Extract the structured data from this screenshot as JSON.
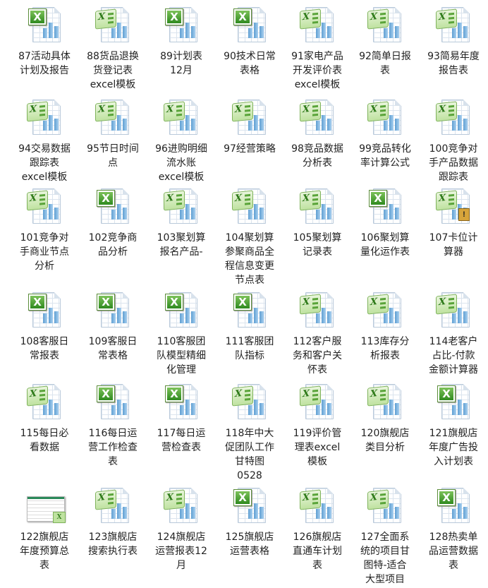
{
  "files": [
    {
      "label": "87活动具体\n计划及报告",
      "icon": "excel-square"
    },
    {
      "label": "88货品退换\n货登记表\nexcel模板",
      "icon": "excel-grid"
    },
    {
      "label": "89计划表\n12月",
      "icon": "excel-square"
    },
    {
      "label": "90技术日常\n表格",
      "icon": "excel-square"
    },
    {
      "label": "91家电产品\n开发评价表\nexcel模板",
      "icon": "excel-grid"
    },
    {
      "label": "92简单日报\n表",
      "icon": "excel-grid"
    },
    {
      "label": "93简易年度\n报告表",
      "icon": "excel-grid"
    },
    {
      "label": "94交易数据\n跟踪表\nexcel模板",
      "icon": "excel-grid"
    },
    {
      "label": "95节日时间\n点",
      "icon": "excel-grid"
    },
    {
      "label": "96进购明细\n流水账\nexcel模板",
      "icon": "excel-grid"
    },
    {
      "label": "97经营策略",
      "icon": "excel-grid"
    },
    {
      "label": "98竞品数据\n分析表",
      "icon": "excel-grid"
    },
    {
      "label": "99竞品转化\n率计算公式",
      "icon": "excel-grid"
    },
    {
      "label": "100竞争对\n手产品数据\n跟踪表",
      "icon": "excel-grid"
    },
    {
      "label": "101竞争对\n手商业节点\n分析",
      "icon": "excel-grid"
    },
    {
      "label": "102竞争商\n品分析",
      "icon": "excel-square"
    },
    {
      "label": "103聚划算\n报名产品-",
      "icon": "excel-grid"
    },
    {
      "label": "104聚划算\n参聚商品全\n程信息变更\n节点表",
      "icon": "excel-grid"
    },
    {
      "label": "105聚划算\n记录表",
      "icon": "excel-grid"
    },
    {
      "label": "106聚划算\n量化运作表",
      "icon": "excel-square"
    },
    {
      "label": "107卡位计\n算器",
      "icon": "excel-grid-locked"
    },
    {
      "label": "108客服日\n常报表",
      "icon": "excel-square"
    },
    {
      "label": "109客服日\n常表格",
      "icon": "excel-square"
    },
    {
      "label": "110客服团\n队模型精细\n化管理",
      "icon": "excel-square"
    },
    {
      "label": "111客服团\n队指标",
      "icon": "excel-square"
    },
    {
      "label": "112客户服\n务和客户关\n怀表",
      "icon": "excel-grid"
    },
    {
      "label": "113库存分\n析报表",
      "icon": "excel-grid"
    },
    {
      "label": "114老客户\n占比-付款\n金额计算器",
      "icon": "excel-grid"
    },
    {
      "label": "115每日必\n看数据",
      "icon": "excel-grid"
    },
    {
      "label": "116每日运\n营工作检查\n表",
      "icon": "excel-square"
    },
    {
      "label": "117每日运\n营检查表",
      "icon": "excel-square"
    },
    {
      "label": "118年中大\n促团队工作\n甘特图\n0528",
      "icon": "excel-grid"
    },
    {
      "label": "119评价管\n理表excel\n模板",
      "icon": "excel-grid"
    },
    {
      "label": "120旗舰店\n类目分析",
      "icon": "excel-grid"
    },
    {
      "label": "121旗舰店\n年度广告投\n入计划表",
      "icon": "excel-square"
    },
    {
      "label": "122旗舰店\n年度预算总\n表",
      "icon": "excel-thumbnail"
    },
    {
      "label": "123旗舰店\n搜索执行表",
      "icon": "excel-grid"
    },
    {
      "label": "124旗舰店\n运营报表12\n月",
      "icon": "excel-grid"
    },
    {
      "label": "125旗舰店\n运营表格",
      "icon": "excel-square"
    },
    {
      "label": "126旗舰店\n直通车计划\n表",
      "icon": "excel-grid"
    },
    {
      "label": "127全面系\n统的项目甘\n图特-适合\n大型项目",
      "icon": "excel-grid"
    },
    {
      "label": "128热卖单\n品运营数据\n表",
      "icon": "excel-square"
    }
  ],
  "colors": {
    "excel_green": "#2f8a1f",
    "chart_blue": "#5f9fd2",
    "text": "#222222"
  }
}
